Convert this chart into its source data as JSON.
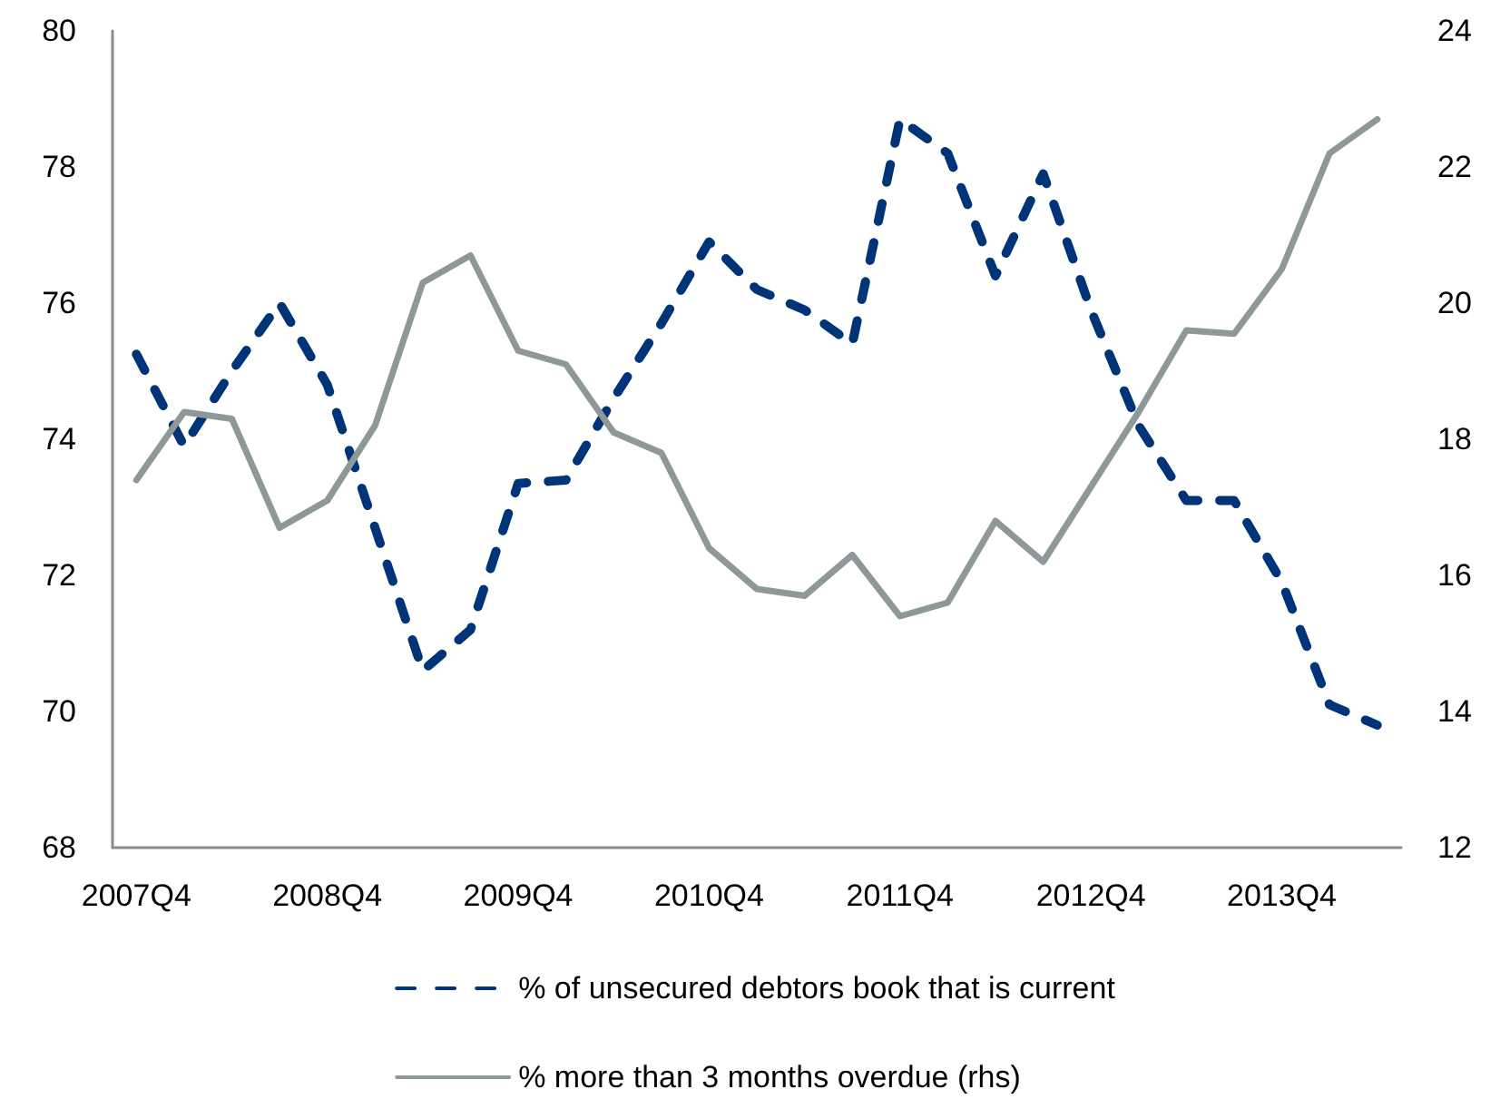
{
  "chart_data": {
    "type": "line",
    "categories": [
      "2007Q4",
      null,
      null,
      null,
      "2008Q4",
      null,
      null,
      null,
      "2009Q4",
      null,
      null,
      null,
      "2010Q4",
      null,
      null,
      null,
      "2011Q4",
      null,
      null,
      null,
      "2012Q4",
      null,
      null,
      null,
      "2013Q4",
      null,
      null
    ],
    "series": [
      {
        "name": "% of unsecured debtors book that is current",
        "color": "#003478",
        "line_style": "dashed",
        "values": [
          75.25,
          73.9,
          75.0,
          76.0,
          74.8,
          72.7,
          70.6,
          71.2,
          73.35,
          73.4,
          74.6,
          75.7,
          76.9,
          76.2,
          75.9,
          75.4,
          78.7,
          78.2,
          76.4,
          77.9,
          75.9,
          74.2,
          73.1,
          73.1,
          71.9,
          70.1,
          69.8
        ]
      },
      {
        "name": "% more than 3 months overdue (rhs)",
        "color": "#8e9899",
        "line_style": "solid",
        "axis": "y2",
        "values": [
          17.4,
          18.4,
          18.3,
          16.7,
          17.1,
          18.2,
          20.3,
          20.7,
          19.3,
          19.1,
          18.1,
          17.8,
          16.4,
          15.8,
          15.7,
          16.3,
          15.4,
          15.6,
          16.8,
          16.2,
          17.3,
          18.4,
          19.6,
          19.55,
          20.5,
          22.2,
          22.7
        ]
      }
    ],
    "ylim": [
      68,
      80
    ],
    "yticks": [
      68,
      70,
      72,
      74,
      76,
      78,
      80
    ],
    "y2lim": [
      12,
      24
    ],
    "y2ticks": [
      12,
      14,
      16,
      18,
      20,
      22,
      24
    ],
    "legend": "bottom",
    "marker": "none"
  }
}
